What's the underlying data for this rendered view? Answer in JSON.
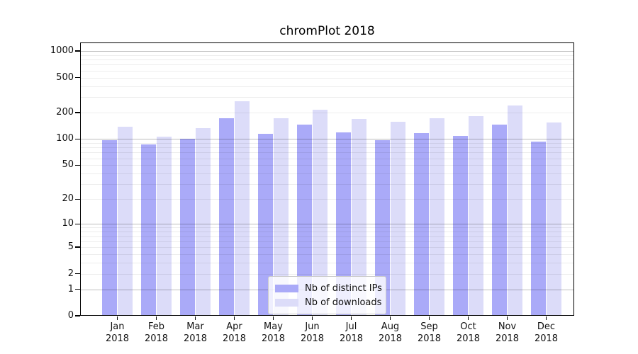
{
  "chart_data": {
    "type": "bar",
    "title": "chromPlot 2018",
    "categories": [
      "Jan",
      "Feb",
      "Mar",
      "Apr",
      "May",
      "Jun",
      "Jul",
      "Aug",
      "Sep",
      "Oct",
      "Nov",
      "Dec"
    ],
    "category_year_line": "2018",
    "series": [
      {
        "name": "Nb of distinct IPs",
        "color": "#aaaaf8",
        "values": [
          97,
          86,
          100,
          171,
          114,
          146,
          119,
          97,
          117,
          109,
          146,
          94
        ]
      },
      {
        "name": "Nb of downloads",
        "color": "#dcdcf9",
        "values": [
          137,
          106,
          133,
          268,
          173,
          216,
          170,
          156,
          173,
          184,
          240,
          153
        ]
      }
    ],
    "xlabel": "",
    "ylabel": "",
    "yticks": [
      0,
      1,
      2,
      5,
      10,
      20,
      50,
      100,
      200,
      500,
      1000
    ],
    "ylim": [
      0,
      1250
    ],
    "yscale": "log10(1+v)",
    "grid": "on",
    "grid_over_bars": true,
    "legend_position": "lower center",
    "colors": {
      "major_grid": "#bfbfbf",
      "minor_grid": "#ededed",
      "spine": "#000000",
      "text": "#111111",
      "background": "#ffffff"
    }
  }
}
